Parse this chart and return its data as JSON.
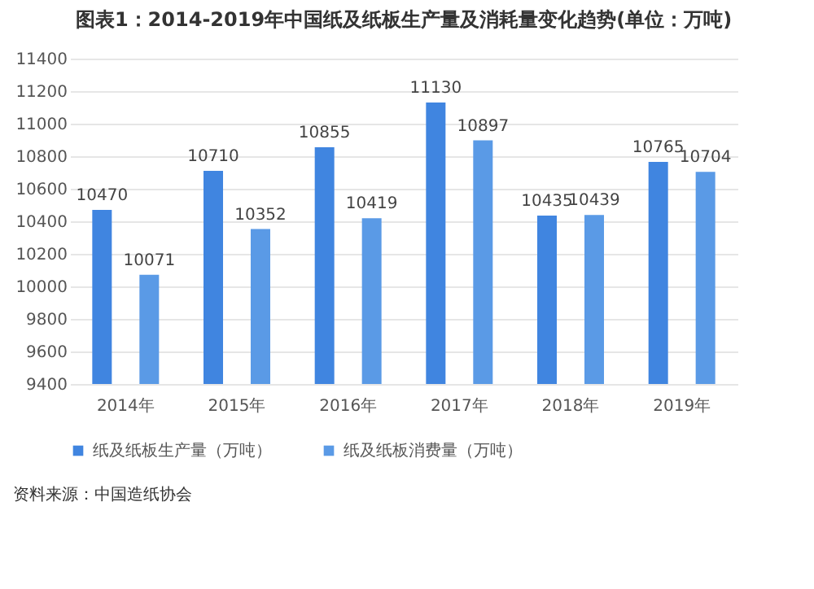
{
  "chart_data": {
    "type": "bar",
    "title": "图表1：2014-2019年中国纸及纸板生产量及消耗量变化趋势(单位：万吨)",
    "categories": [
      "2014年",
      "2015年",
      "2016年",
      "2017年",
      "2018年",
      "2019年"
    ],
    "series": [
      {
        "name": "纸及纸板生产量（万吨）",
        "color": "#4085e0",
        "values": [
          10470,
          10710,
          10855,
          11130,
          10435,
          10765
        ]
      },
      {
        "name": "纸及纸板消费量（万吨）",
        "color": "#5a9ae6",
        "values": [
          10071,
          10352,
          10419,
          10897,
          10439,
          10704
        ]
      }
    ],
    "ylim": [
      9400,
      11400
    ],
    "yticks": [
      9400,
      9600,
      9800,
      10000,
      10200,
      10400,
      10600,
      10800,
      11000,
      11200,
      11400
    ],
    "grid": "y",
    "legend": "bottom",
    "data_labels": true,
    "annotations": [
      "资料来源：中国造纸协会"
    ]
  }
}
